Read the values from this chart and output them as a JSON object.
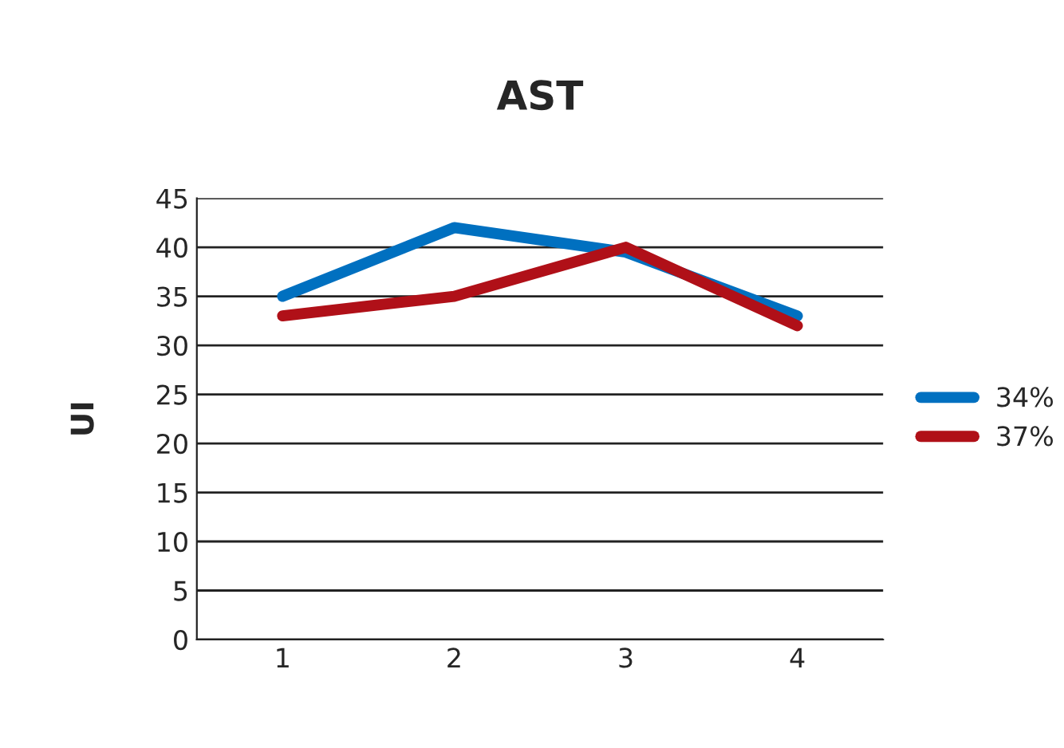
{
  "chart_data": {
    "type": "line",
    "title": "AST",
    "ylabel": "UI",
    "categories": [
      "1",
      "2",
      "3",
      "4"
    ],
    "series": [
      {
        "name": "34%",
        "color": "#0070c0",
        "values": [
          35,
          42,
          39.5,
          33
        ]
      },
      {
        "name": "37%",
        "color": "#b01018",
        "values": [
          33,
          35,
          40,
          32
        ]
      }
    ],
    "ylim": [
      0,
      45
    ],
    "yticks": [
      0,
      5,
      10,
      15,
      20,
      25,
      30,
      35,
      40,
      45
    ],
    "grid": "y",
    "legend": "right",
    "marker": "none",
    "line_style": "solid"
  }
}
